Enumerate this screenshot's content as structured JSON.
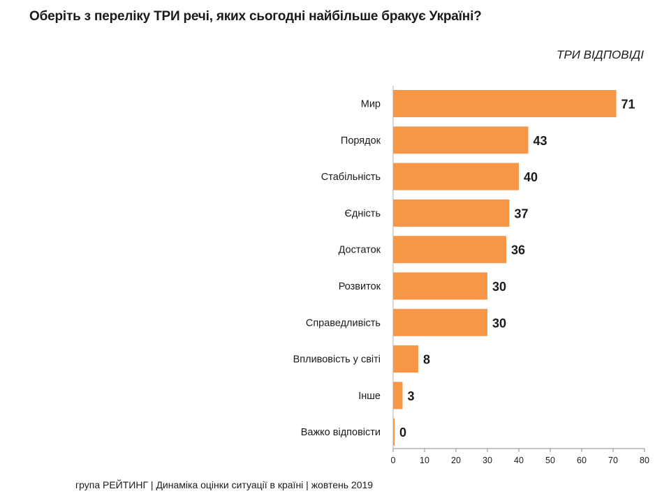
{
  "chart_data": {
    "type": "bar",
    "orientation": "horizontal",
    "title": "Оберіть з переліку ТРИ речі, яких сьогодні найбільше бракує Україні?",
    "subtitle": "ТРИ ВІДПОВІДІ",
    "categories": [
      "Мир",
      "Порядок",
      "Стабільність",
      "Єдність",
      "Достаток",
      "Розвиток",
      "Справедливість",
      "Впливовість у світі",
      "Інше",
      "Важко відповісти"
    ],
    "values": [
      71,
      43,
      40,
      37,
      36,
      30,
      30,
      8,
      3,
      0
    ],
    "xlim": [
      0,
      80
    ],
    "xticks": [
      0,
      10,
      20,
      30,
      40,
      50,
      60,
      70,
      80
    ],
    "bar_color": "#f79646",
    "grid": false,
    "legend": "none"
  },
  "footer": "група РЕЙТИНГ |  Динаміка оцінки ситуації в країні  |  жовтень  2019"
}
